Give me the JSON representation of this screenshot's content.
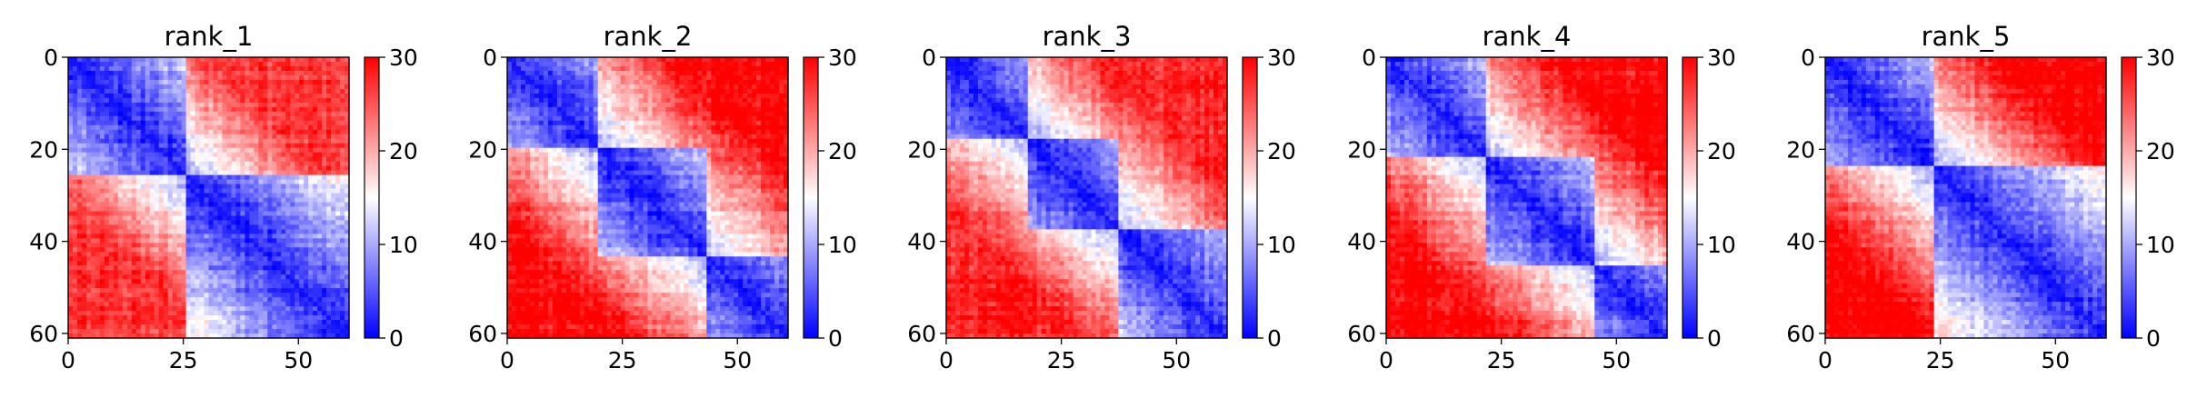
{
  "figure": {
    "colorbar": {
      "cmap": "bwr",
      "ticks": [
        "0",
        "10",
        "20",
        "30"
      ],
      "range": [
        0,
        30
      ],
      "low_color": "#0000ff",
      "mid_color": "#ffffff",
      "high_color": "#ff0000"
    }
  },
  "chart_data": [
    {
      "type": "heatmap",
      "title": "rank_1",
      "matrix_size": 62,
      "xlim": [
        0,
        61
      ],
      "ylim": [
        61,
        0
      ],
      "x_ticks": [
        "0",
        "25",
        "50"
      ],
      "y_ticks": [
        "0",
        "20",
        "40",
        "60"
      ],
      "colorbar_range": [
        0,
        30
      ],
      "domains": [
        [
          0,
          26
        ],
        [
          26,
          62
        ]
      ],
      "off_domain_level": 24,
      "diagonal_level": 1,
      "noise_seed": 11
    },
    {
      "type": "heatmap",
      "title": "rank_2",
      "matrix_size": 62,
      "xlim": [
        0,
        61
      ],
      "ylim": [
        61,
        0
      ],
      "x_ticks": [
        "0",
        "25",
        "50"
      ],
      "y_ticks": [
        "0",
        "20",
        "40",
        "60"
      ],
      "colorbar_range": [
        0,
        30
      ],
      "domains": [
        [
          0,
          20
        ],
        [
          20,
          44
        ],
        [
          44,
          62
        ]
      ],
      "off_domain_level": 27,
      "diagonal_level": 1,
      "noise_seed": 23
    },
    {
      "type": "heatmap",
      "title": "rank_3",
      "matrix_size": 62,
      "xlim": [
        0,
        61
      ],
      "ylim": [
        61,
        0
      ],
      "x_ticks": [
        "0",
        "25",
        "50"
      ],
      "y_ticks": [
        "0",
        "20",
        "40",
        "60"
      ],
      "colorbar_range": [
        0,
        30
      ],
      "domains": [
        [
          0,
          18
        ],
        [
          18,
          38
        ],
        [
          38,
          62
        ]
      ],
      "off_domain_level": 25,
      "diagonal_level": 1,
      "noise_seed": 37
    },
    {
      "type": "heatmap",
      "title": "rank_4",
      "matrix_size": 62,
      "xlim": [
        0,
        61
      ],
      "ylim": [
        61,
        0
      ],
      "x_ticks": [
        "0",
        "25",
        "50"
      ],
      "y_ticks": [
        "0",
        "20",
        "40",
        "60"
      ],
      "colorbar_range": [
        0,
        30
      ],
      "domains": [
        [
          0,
          22
        ],
        [
          22,
          46
        ],
        [
          46,
          62
        ]
      ],
      "off_domain_level": 27,
      "diagonal_level": 1,
      "noise_seed": 41
    },
    {
      "type": "heatmap",
      "title": "rank_5",
      "matrix_size": 62,
      "xlim": [
        0,
        61
      ],
      "ylim": [
        61,
        0
      ],
      "x_ticks": [
        "0",
        "25",
        "50"
      ],
      "y_ticks": [
        "0",
        "20",
        "40",
        "60"
      ],
      "colorbar_range": [
        0,
        30
      ],
      "domains": [
        [
          0,
          24
        ],
        [
          24,
          62
        ]
      ],
      "off_domain_level": 28,
      "diagonal_level": 1,
      "noise_seed": 53
    }
  ]
}
